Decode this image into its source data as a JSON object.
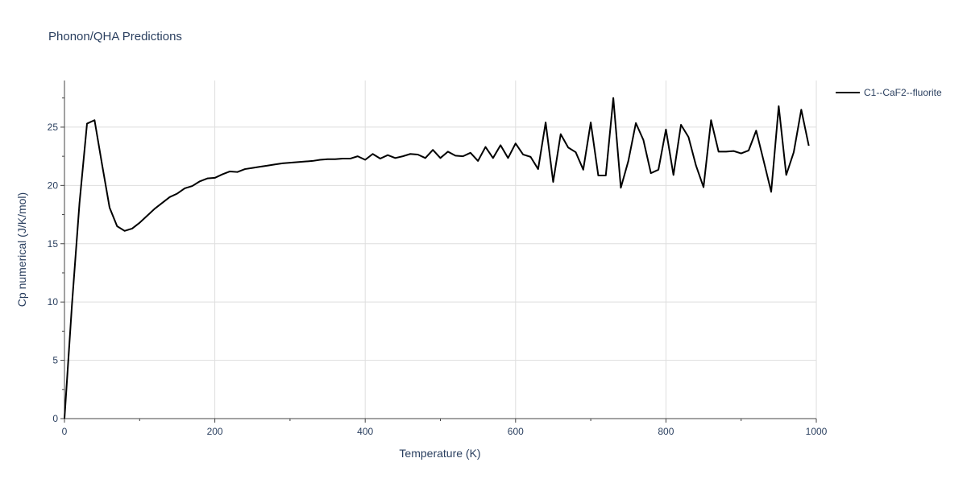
{
  "chart_data": {
    "type": "line",
    "title": "Phonon/QHA Predictions",
    "xlabel": "Temperature (K)",
    "ylabel": "Cp numerical (J/K/mol)",
    "xlim": [
      0,
      1000
    ],
    "ylim": [
      0,
      29
    ],
    "xticks": [
      0,
      200,
      400,
      600,
      800,
      1000
    ],
    "yticks": [
      0,
      5,
      10,
      15,
      20,
      25
    ],
    "grid": true,
    "legend_position": "top-right",
    "series": [
      {
        "name": "C1--CaF2--fluorite",
        "color": "#000000",
        "x": [
          0,
          10,
          20,
          30,
          40,
          50,
          60,
          70,
          80,
          90,
          100,
          110,
          120,
          130,
          140,
          150,
          160,
          170,
          180,
          190,
          200,
          210,
          220,
          230,
          240,
          250,
          260,
          270,
          280,
          290,
          300,
          310,
          320,
          330,
          340,
          350,
          360,
          370,
          380,
          390,
          400,
          410,
          420,
          430,
          440,
          450,
          460,
          470,
          480,
          490,
          500,
          510,
          520,
          530,
          540,
          550,
          560,
          570,
          580,
          590,
          600,
          610,
          620,
          630,
          640,
          650,
          660,
          670,
          680,
          690,
          700,
          710,
          720,
          730,
          740,
          750,
          760,
          770,
          780,
          790,
          800,
          810,
          820,
          830,
          840,
          850,
          860,
          870,
          880,
          890,
          900,
          910,
          920,
          930,
          940,
          950,
          960,
          970,
          980,
          990
        ],
        "y": [
          0,
          9.8,
          18.5,
          25.3,
          25.6,
          21.8,
          18.1,
          16.5,
          16.1,
          16.3,
          16.8,
          17.4,
          18.0,
          18.5,
          19.0,
          19.3,
          19.75,
          19.95,
          20.35,
          20.6,
          20.65,
          20.95,
          21.2,
          21.15,
          21.4,
          21.5,
          21.6,
          21.7,
          21.8,
          21.9,
          21.95,
          22.0,
          22.05,
          22.1,
          22.2,
          22.25,
          22.25,
          22.3,
          22.3,
          22.5,
          22.2,
          22.7,
          22.3,
          22.6,
          22.35,
          22.5,
          22.7,
          22.65,
          22.35,
          23.05,
          22.35,
          22.9,
          22.55,
          22.5,
          22.8,
          22.1,
          23.3,
          22.35,
          23.45,
          22.35,
          23.6,
          22.65,
          22.45,
          21.4,
          25.4,
          20.3,
          24.4,
          23.25,
          22.85,
          21.35,
          25.4,
          20.85,
          20.85,
          27.5,
          19.8,
          22.1,
          25.35,
          23.9,
          21.05,
          21.35,
          24.8,
          20.9,
          25.2,
          24.15,
          21.7,
          19.85,
          25.6,
          22.9,
          22.9,
          22.95,
          22.75,
          23.0,
          24.7,
          22.1,
          19.45,
          26.8,
          20.9,
          22.85,
          26.5,
          23.4
        ]
      }
    ]
  }
}
